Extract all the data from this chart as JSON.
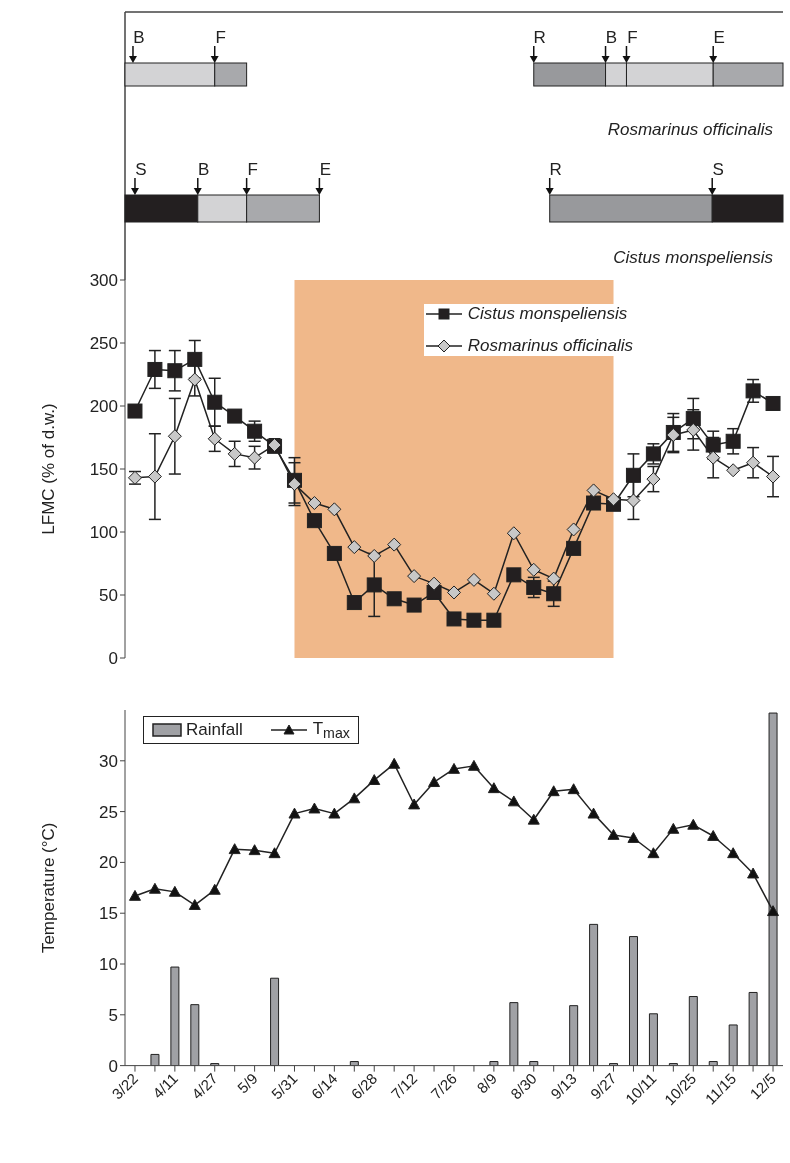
{
  "chart_data": [
    {
      "type": "other",
      "annotations": [
        "B",
        "F",
        "R",
        "B",
        "F",
        "E",
        "Rosmarinus officinalis",
        "S",
        "B",
        "F",
        "E",
        "R",
        "S",
        "Cistus monspeliensis"
      ]
    },
    {
      "type": "line",
      "ylabel": "LFMC (% of d.w.)",
      "categories": [
        "3/22",
        null,
        "4/11",
        null,
        "4/27",
        null,
        "5/9",
        null,
        "5/31",
        null,
        "6/14",
        null,
        "6/28",
        null,
        "7/12",
        null,
        "7/26",
        null,
        "8/9",
        null,
        "8/30",
        null,
        "9/13",
        null,
        "9/27",
        null,
        "10/11",
        null,
        "10/25",
        null,
        "11/15",
        null,
        "12/5"
      ],
      "series": [
        {
          "name": "Cistus monspeliensis",
          "color": "#231f20",
          "marker": "square",
          "values": [
            196,
            229,
            228,
            237,
            203,
            192,
            180,
            168,
            141,
            109,
            83,
            44,
            58,
            47,
            42,
            52,
            31,
            30,
            30,
            66,
            56,
            51,
            87,
            123,
            122,
            145,
            162,
            179,
            190,
            169,
            172,
            212,
            202
          ],
          "errors": [
            null,
            15,
            16,
            15,
            19,
            null,
            8,
            null,
            18,
            null,
            null,
            null,
            25,
            null,
            null,
            null,
            null,
            null,
            null,
            null,
            8,
            10,
            null,
            null,
            null,
            17,
            8,
            15,
            16,
            11,
            10,
            9,
            null
          ]
        },
        {
          "name": "Rosmarinus officinalis",
          "color": "#c8c8c8",
          "marker": "diamond",
          "values": [
            143,
            144,
            176,
            221,
            174,
            162,
            159,
            169,
            138,
            123,
            118,
            88,
            81,
            90,
            65,
            59,
            52,
            62,
            51,
            99,
            70,
            63,
            102,
            133,
            126,
            125,
            142,
            177,
            181,
            159,
            149,
            155,
            144
          ],
          "errors": [
            5,
            34,
            30,
            13,
            10,
            10,
            9,
            5,
            17,
            null,
            null,
            null,
            null,
            null,
            null,
            null,
            null,
            null,
            null,
            null,
            null,
            null,
            null,
            null,
            null,
            15,
            10,
            14,
            16,
            16,
            null,
            12,
            16
          ]
        }
      ],
      "bands": [
        {
          "axis": "x",
          "from": "5/31",
          "to": "9/27",
          "color": "#f0b88a"
        }
      ],
      "ylim": [
        0,
        300
      ],
      "yticks": [
        0,
        50,
        100,
        150,
        200,
        250,
        300
      ],
      "grid": false,
      "legend": "top right",
      "tick_labels": "y",
      "line_style": "solid"
    },
    {
      "type": "line",
      "ylabel": "Temperature (°C)",
      "categories": [
        "3/22",
        null,
        "4/11",
        null,
        "4/27",
        null,
        "5/9",
        null,
        "5/31",
        null,
        "6/14",
        null,
        "6/28",
        null,
        "7/12",
        null,
        "7/26",
        null,
        "8/9",
        null,
        "8/30",
        null,
        "9/13",
        null,
        "9/27",
        null,
        "10/11",
        null,
        "10/25",
        null,
        "11/15",
        null,
        "12/5"
      ],
      "series": [
        {
          "name": "Rainfall",
          "type": "bar",
          "color": "#a0a1a5",
          "values": [
            0,
            1.1,
            9.7,
            6.0,
            0.2,
            0,
            0,
            8.6,
            0,
            0,
            0,
            0.4,
            0,
            0,
            0,
            0,
            0,
            0,
            0.4,
            6.2,
            0.4,
            0,
            5.9,
            13.9,
            0.2,
            12.7,
            5.1,
            0.2,
            6.8,
            0.4,
            4.0,
            7.2,
            34.7
          ]
        },
        {
          "name": "T$_{max}$",
          "color": "#111111",
          "marker": "triangle",
          "values": [
            16.7,
            17.4,
            17.1,
            15.8,
            17.3,
            21.3,
            21.2,
            20.9,
            24.8,
            25.3,
            24.8,
            26.3,
            28.1,
            29.7,
            25.7,
            27.9,
            29.2,
            29.5,
            27.3,
            26.0,
            24.2,
            27.0,
            27.2,
            24.8,
            22.7,
            22.4,
            20.9,
            23.3,
            23.7,
            22.6,
            20.9,
            18.9,
            15.2
          ]
        }
      ],
      "ylim": [
        0,
        35
      ],
      "yticks": [
        0,
        5,
        10,
        15,
        20,
        25,
        30
      ],
      "grid": false,
      "legend": "top left",
      "line_style": "solid"
    }
  ]
}
